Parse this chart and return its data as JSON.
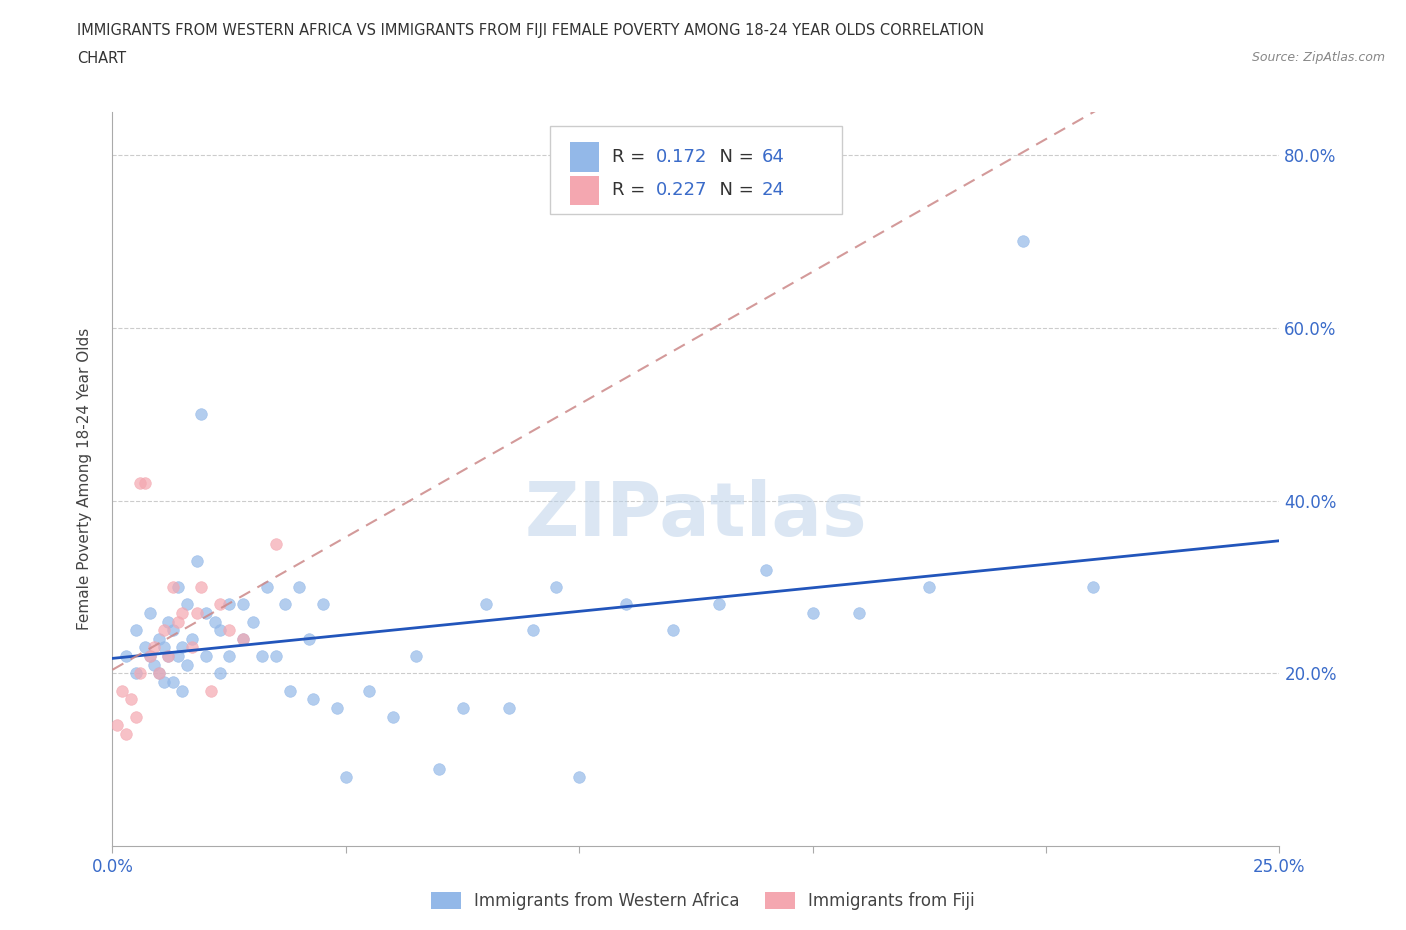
{
  "title_line1": "IMMIGRANTS FROM WESTERN AFRICA VS IMMIGRANTS FROM FIJI FEMALE POVERTY AMONG 18-24 YEAR OLDS CORRELATION",
  "title_line2": "CHART",
  "source_text": "Source: ZipAtlas.com",
  "ylabel": "Female Poverty Among 18-24 Year Olds",
  "xlim": [
    0.0,
    0.25
  ],
  "ylim": [
    0.0,
    0.85
  ],
  "ytick_labels": [
    "20.0%",
    "40.0%",
    "60.0%",
    "80.0%"
  ],
  "ytick_values": [
    0.2,
    0.4,
    0.6,
    0.8
  ],
  "legend_labels": [
    "Immigrants from Western Africa",
    "Immigrants from Fiji"
  ],
  "color_western_africa": "#93B8E8",
  "color_fiji": "#F4A7B0",
  "color_line_western_africa": "#2255BB",
  "color_line_fiji": "#CC8888",
  "R_western_africa": 0.172,
  "N_western_africa": 64,
  "R_fiji": 0.227,
  "N_fiji": 24,
  "watermark": "ZIPatlas",
  "background_color": "#ffffff",
  "western_africa_x": [
    0.003,
    0.005,
    0.005,
    0.007,
    0.008,
    0.008,
    0.009,
    0.01,
    0.01,
    0.011,
    0.011,
    0.012,
    0.012,
    0.013,
    0.013,
    0.014,
    0.014,
    0.015,
    0.015,
    0.016,
    0.016,
    0.017,
    0.018,
    0.019,
    0.02,
    0.02,
    0.022,
    0.023,
    0.023,
    0.025,
    0.025,
    0.028,
    0.028,
    0.03,
    0.032,
    0.033,
    0.035,
    0.037,
    0.038,
    0.04,
    0.042,
    0.043,
    0.045,
    0.048,
    0.05,
    0.055,
    0.06,
    0.065,
    0.07,
    0.075,
    0.08,
    0.085,
    0.09,
    0.095,
    0.1,
    0.11,
    0.12,
    0.13,
    0.14,
    0.15,
    0.16,
    0.175,
    0.195,
    0.21
  ],
  "western_africa_y": [
    0.22,
    0.25,
    0.2,
    0.23,
    0.27,
    0.22,
    0.21,
    0.24,
    0.2,
    0.19,
    0.23,
    0.22,
    0.26,
    0.19,
    0.25,
    0.22,
    0.3,
    0.18,
    0.23,
    0.28,
    0.21,
    0.24,
    0.33,
    0.5,
    0.27,
    0.22,
    0.26,
    0.25,
    0.2,
    0.28,
    0.22,
    0.24,
    0.28,
    0.26,
    0.22,
    0.3,
    0.22,
    0.28,
    0.18,
    0.3,
    0.24,
    0.17,
    0.28,
    0.16,
    0.08,
    0.18,
    0.15,
    0.22,
    0.09,
    0.16,
    0.28,
    0.16,
    0.25,
    0.3,
    0.08,
    0.28,
    0.25,
    0.28,
    0.32,
    0.27,
    0.27,
    0.3,
    0.7,
    0.3
  ],
  "fiji_x": [
    0.001,
    0.002,
    0.003,
    0.004,
    0.005,
    0.006,
    0.006,
    0.007,
    0.008,
    0.009,
    0.01,
    0.011,
    0.012,
    0.013,
    0.014,
    0.015,
    0.017,
    0.018,
    0.019,
    0.021,
    0.023,
    0.025,
    0.028,
    0.035
  ],
  "fiji_y": [
    0.14,
    0.18,
    0.13,
    0.17,
    0.15,
    0.2,
    0.42,
    0.42,
    0.22,
    0.23,
    0.2,
    0.25,
    0.22,
    0.3,
    0.26,
    0.27,
    0.23,
    0.27,
    0.3,
    0.18,
    0.28,
    0.25,
    0.24,
    0.35
  ]
}
